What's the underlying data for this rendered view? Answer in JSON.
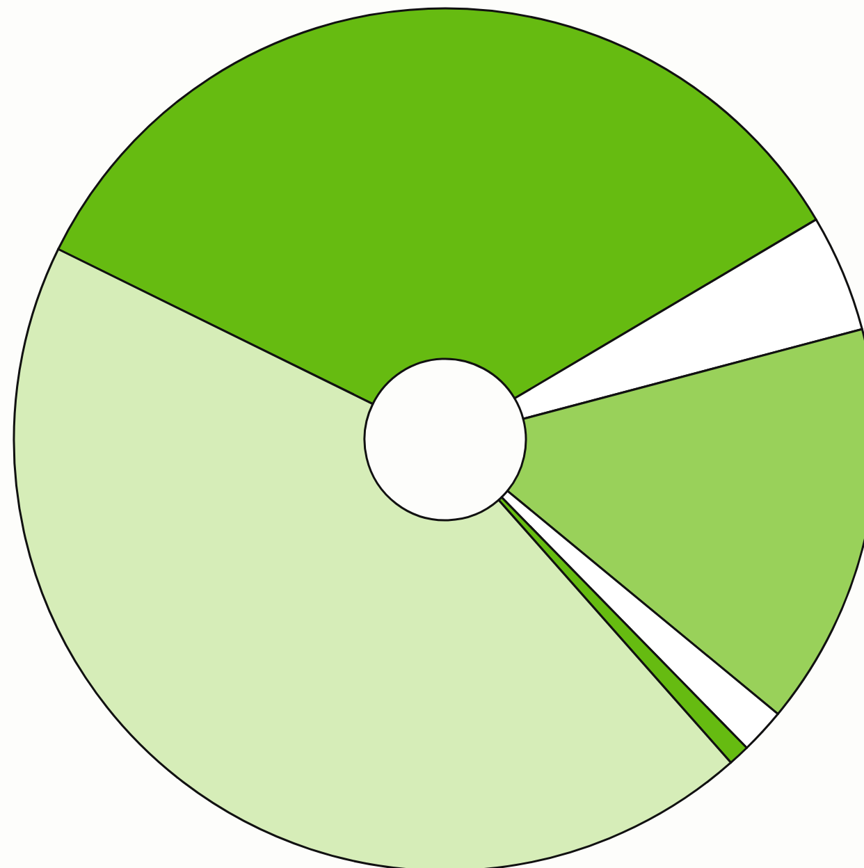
{
  "chart_data": {
    "type": "donut",
    "categories": [
      null,
      null,
      null,
      null,
      null,
      null
    ],
    "values": [
      34.2,
      4.4,
      15.1,
      1.7,
      0.8,
      43.8
    ],
    "colors": [
      "#66bb11",
      "#ffffff",
      "#99d15a",
      "#ffffff",
      "#66bb11",
      "#d6edb8"
    ]
  }
}
